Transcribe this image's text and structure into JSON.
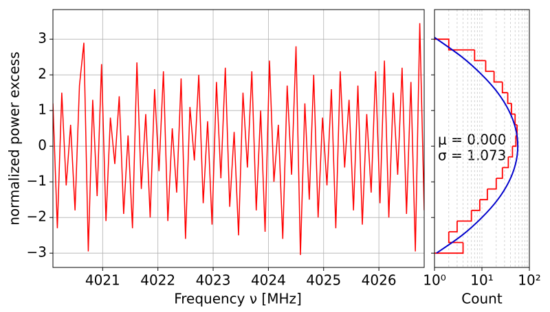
{
  "chart_data": [
    {
      "type": "line",
      "xlabel": "Frequency ν  [MHz]",
      "ylabel": "normalized power excess",
      "x": [
        4020.1,
        4020.18,
        4020.26,
        4020.34,
        4020.42,
        4020.5,
        4020.58,
        4020.66,
        4020.74,
        4020.82,
        4020.9,
        4020.98,
        4021.06,
        4021.14,
        4021.22,
        4021.3,
        4021.38,
        4021.46,
        4021.54,
        4021.62,
        4021.7,
        4021.78,
        4021.86,
        4021.94,
        4022.02,
        4022.1,
        4022.18,
        4022.26,
        4022.34,
        4022.42,
        4022.5,
        4022.58,
        4022.66,
        4022.74,
        4022.82,
        4022.9,
        4022.98,
        4023.06,
        4023.14,
        4023.22,
        4023.3,
        4023.38,
        4023.46,
        4023.54,
        4023.62,
        4023.7,
        4023.78,
        4023.86,
        4023.94,
        4024.02,
        4024.1,
        4024.18,
        4024.26,
        4024.34,
        4024.42,
        4024.5,
        4024.58,
        4024.66,
        4024.74,
        4024.82,
        4024.9,
        4024.98,
        4025.06,
        4025.14,
        4025.22,
        4025.3,
        4025.38,
        4025.46,
        4025.54,
        4025.62,
        4025.7,
        4025.78,
        4025.86,
        4025.94,
        4026.02,
        4026.1,
        4026.18,
        4026.26,
        4026.34,
        4026.42,
        4026.5,
        4026.58,
        4026.66,
        4026.74,
        4026.82
      ],
      "series": [
        {
          "color": "#ff0000",
          "values": [
            1.2,
            -2.3,
            1.5,
            -1.1,
            0.6,
            -1.8,
            1.7,
            2.9,
            -2.95,
            1.3,
            -1.4,
            2.3,
            -2.1,
            0.8,
            -0.5,
            1.4,
            -1.9,
            0.3,
            -2.3,
            2.35,
            -1.2,
            0.9,
            -2.0,
            1.6,
            -0.7,
            2.1,
            -2.1,
            0.5,
            -1.3,
            1.9,
            -2.6,
            1.1,
            -0.4,
            2.0,
            -1.6,
            0.7,
            -2.2,
            1.8,
            -0.9,
            2.2,
            -1.7,
            0.4,
            -2.5,
            1.5,
            -0.6,
            2.1,
            -1.8,
            1.0,
            -2.4,
            2.4,
            -1.0,
            0.6,
            -2.6,
            1.7,
            -0.8,
            2.8,
            -3.05,
            1.2,
            -1.5,
            2.0,
            -2.0,
            0.8,
            -1.1,
            1.6,
            -2.3,
            2.1,
            -0.6,
            1.3,
            -1.8,
            1.7,
            -2.2,
            0.9,
            -1.3,
            2.1,
            -1.6,
            2.4,
            -2.0,
            1.5,
            -0.8,
            2.2,
            -1.9,
            1.8,
            -2.95,
            3.45,
            -1.8
          ]
        }
      ],
      "xlim": [
        4020.1,
        4026.82
      ],
      "ylim": [
        -3.4,
        3.83
      ],
      "xticks": [
        4021,
        4022,
        4023,
        4024,
        4025,
        4026
      ],
      "yticks": [
        {
          "value": -3,
          "label": "−3"
        },
        {
          "value": -2,
          "label": "−2"
        },
        {
          "value": -1,
          "label": "−1"
        },
        0,
        1,
        2,
        3
      ],
      "grid": true
    },
    {
      "type": "histogram",
      "xlabel": "Count",
      "orientation": "horizontal",
      "xscale": "log",
      "bins": [
        -3.0,
        -2.7,
        -2.4,
        -2.1,
        -1.8,
        -1.5,
        -1.2,
        -0.9,
        -0.6,
        -0.3,
        0.0,
        0.3,
        0.6,
        0.9,
        1.2,
        1.5,
        1.8,
        2.1,
        2.4,
        2.7,
        3.0
      ],
      "values": [
        4,
        2,
        3,
        6,
        9,
        13,
        20,
        27,
        36,
        44,
        52,
        55,
        50,
        42,
        35,
        27,
        18,
        12,
        7,
        2
      ],
      "color": "#ff0000",
      "fit": {
        "color": "#0000cc",
        "y": [
          -3.0,
          -2.5,
          -2.0,
          -1.5,
          -1.0,
          -0.5,
          0.0,
          0.5,
          1.0,
          1.5,
          2.0,
          2.5,
          3.05
        ],
        "values": [
          1.1,
          3.8,
          10,
          21.5,
          36.9,
          51.1,
          57,
          51.1,
          36.9,
          21.5,
          10,
          3.8,
          1.0
        ]
      },
      "annotations": [
        "μ = 0.000",
        "σ = 1.073"
      ],
      "xlim": [
        1,
        100
      ],
      "ylim": [
        -3.4,
        3.83
      ],
      "xticks": [
        {
          "value": 1,
          "label": "10⁰"
        },
        {
          "value": 10,
          "label": "10¹"
        },
        {
          "value": 100,
          "label": "10²"
        }
      ],
      "yticks": [
        -3,
        -2,
        -1,
        0,
        1,
        2,
        3
      ],
      "grid": true
    }
  ]
}
